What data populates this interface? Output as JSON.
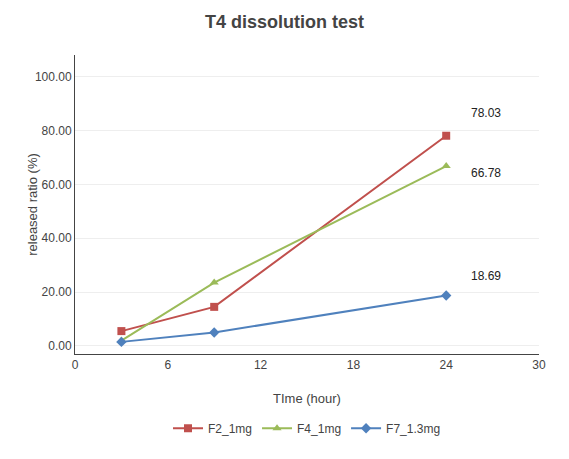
{
  "chart_data": {
    "type": "line",
    "title": "T4 dissolution test",
    "xlabel": "TIme (hour)",
    "ylabel": "released ratio (%)",
    "x": [
      3,
      9,
      24
    ],
    "series": [
      {
        "name": "F2_1mg",
        "color": "#c0504d",
        "marker": "square",
        "values": [
          5.5,
          14.5,
          78.03
        ]
      },
      {
        "name": "F4_1mg",
        "color": "#9bbb59",
        "marker": "triangle-up",
        "values": [
          2.0,
          23.5,
          66.78
        ]
      },
      {
        "name": "F7_1.3mg",
        "color": "#4f81bd",
        "marker": "diamond",
        "values": [
          1.5,
          5.0,
          18.69
        ]
      }
    ],
    "annotations": [
      {
        "text": "78.03",
        "x": 25.5,
        "y": 83.0
      },
      {
        "text": "66.78",
        "x": 25.5,
        "y": 61.0
      },
      {
        "text": "18.69",
        "x": 25.5,
        "y": 22.5
      }
    ],
    "xlim": [
      0,
      30
    ],
    "xticks": [
      0,
      6,
      12,
      18,
      24,
      30
    ],
    "ylim": [
      -3,
      108
    ],
    "yticks": [
      {
        "value": 0,
        "label": "0.00"
      },
      {
        "value": 20,
        "label": "20.00"
      },
      {
        "value": 40,
        "label": "40.00"
      },
      {
        "value": 60,
        "label": "60.00"
      },
      {
        "value": 80,
        "label": "80.00"
      },
      {
        "value": 100,
        "label": "100.00"
      }
    ],
    "grid": "y",
    "legend": "bottom"
  }
}
